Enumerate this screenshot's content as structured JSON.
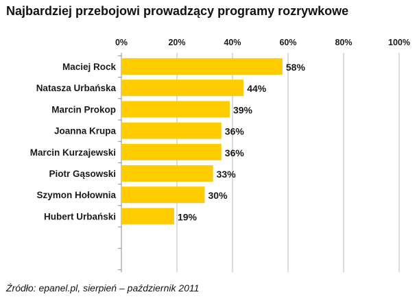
{
  "chart_data": {
    "type": "bar",
    "orientation": "horizontal",
    "title": "Najbardziej przebojowi prowadzący programy rozrywkowe",
    "categories": [
      "Maciej Rock",
      "Natasza Urbańska",
      "Marcin Prokop",
      "Joanna Krupa",
      "Marcin Kurzajewski",
      "Piotr Gąsowski",
      "Szymon Hołownia",
      "Hubert Urbański"
    ],
    "values": [
      58,
      44,
      39,
      36,
      36,
      33,
      30,
      19
    ],
    "value_labels": [
      "58%",
      "44%",
      "39%",
      "36%",
      "36%",
      "33%",
      "30%",
      "19%"
    ],
    "x_ticks": [
      "0%",
      "20%",
      "40%",
      "60%",
      "80%",
      "100%"
    ],
    "xlim": [
      0,
      100
    ],
    "xlabel": "",
    "ylabel": "",
    "axis_position": "top",
    "grid": true,
    "bar_color": "#FFCC00",
    "grid_color": "#B8B8B8",
    "source": "Źródło: epanel.pl, sierpień – październik 2011"
  }
}
